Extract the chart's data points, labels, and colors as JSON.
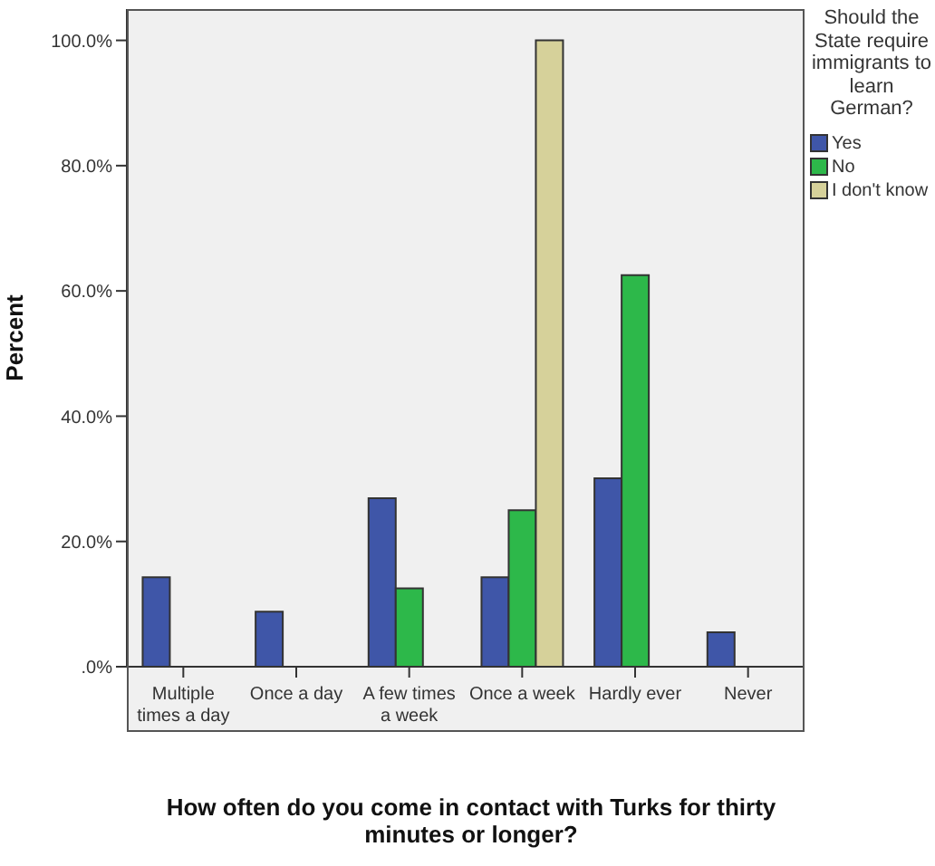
{
  "chart_data": {
    "type": "bar",
    "xlabel": "How often do you come in contact with Turks for thirty minutes or longer?",
    "ylabel": "Percent",
    "legend_title": "Should the State require immigrants to learn German?",
    "categories": [
      "Multiple times a day",
      "Once a day",
      "A few times a week",
      "Once a week",
      "Hardly ever",
      "Never"
    ],
    "series": [
      {
        "name": "Yes",
        "color": "#3f56a8",
        "values": [
          14.3,
          8.8,
          26.9,
          14.3,
          30.1,
          5.5
        ]
      },
      {
        "name": "No",
        "color": "#2db84a",
        "values": [
          0,
          0,
          12.5,
          25.0,
          62.5,
          0
        ]
      },
      {
        "name": "I don't know",
        "color": "#d6d19a",
        "values": [
          0,
          0,
          0,
          100,
          0,
          0
        ]
      }
    ],
    "ylim": [
      0,
      105
    ],
    "yticks": [
      {
        "value": 0,
        "label": ".0%"
      },
      {
        "value": 20,
        "label": "20.0%"
      },
      {
        "value": 40,
        "label": "40.0%"
      },
      {
        "value": 60,
        "label": "60.0%"
      },
      {
        "value": 80,
        "label": "80.0%"
      },
      {
        "value": 100,
        "label": "100.0%"
      }
    ],
    "grid": false,
    "legend": "top right"
  }
}
